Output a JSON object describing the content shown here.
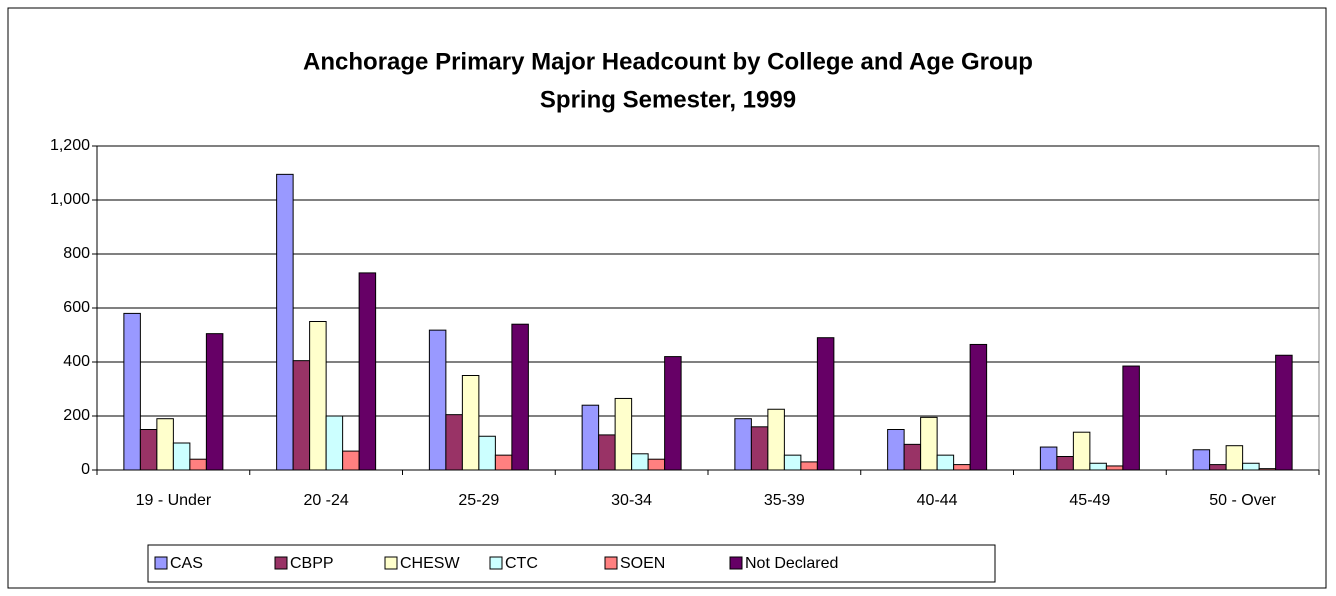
{
  "chart_data": {
    "type": "bar",
    "title": "Anchorage Primary Major Headcount by College and Age Group",
    "subtitle": "Spring Semester, 1999",
    "categories": [
      "19 - Under",
      "20 -24",
      "25-29",
      "30-34",
      "35-39",
      "40-44",
      "45-49",
      "50 - Over"
    ],
    "series": [
      {
        "name": "CAS",
        "color": "#9999ff",
        "values": [
          580,
          1095,
          518,
          240,
          190,
          150,
          85,
          75
        ]
      },
      {
        "name": "CBPP",
        "color": "#993366",
        "values": [
          150,
          405,
          205,
          130,
          160,
          95,
          50,
          20
        ]
      },
      {
        "name": "CHESW",
        "color": "#ffffcc",
        "values": [
          190,
          550,
          350,
          265,
          225,
          195,
          140,
          90
        ]
      },
      {
        "name": "CTC",
        "color": "#ccffff",
        "values": [
          100,
          200,
          125,
          60,
          55,
          55,
          25,
          25
        ]
      },
      {
        "name": "SOEN",
        "color": "#ff8080",
        "values": [
          40,
          70,
          55,
          40,
          30,
          20,
          15,
          5
        ]
      },
      {
        "name": "Not Declared",
        "color": "#660066",
        "values": [
          505,
          730,
          540,
          420,
          490,
          465,
          385,
          425
        ]
      }
    ],
    "ylim": [
      0,
      1200
    ],
    "yticks": [
      0,
      200,
      400,
      600,
      800,
      {
        "value": 1000,
        "label": "1,000"
      },
      {
        "value": 1200,
        "label": "1,200"
      }
    ],
    "grid": true,
    "legend": "bottom"
  }
}
